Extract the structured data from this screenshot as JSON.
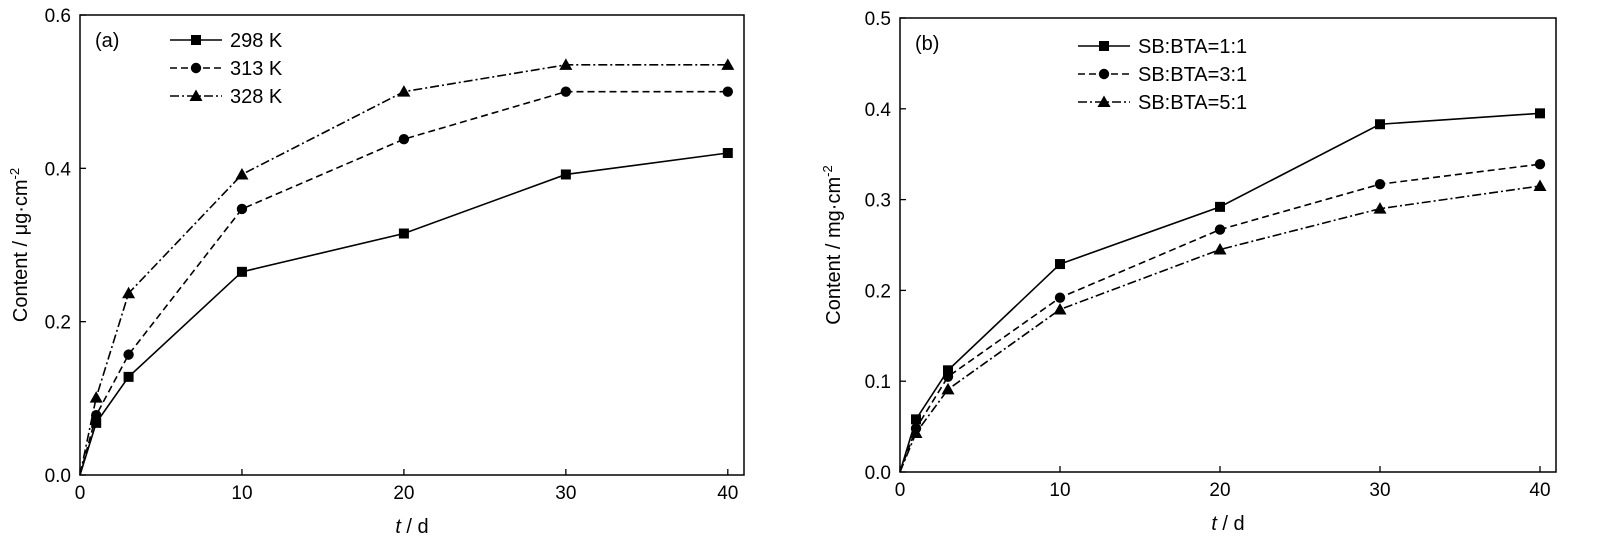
{
  "chart_data": [
    {
      "type": "line",
      "panel_label": "(a)",
      "xlabel_italic": "t",
      "xlabel_unit": " / d",
      "ylabel_text": "Content / μg·cm",
      "ylabel_sup": "-2",
      "xlim": [
        0,
        41
      ],
      "ylim": [
        0,
        0.6
      ],
      "xticks": [
        0,
        10,
        20,
        30,
        40
      ],
      "xtick_labels": [
        "0",
        "10",
        "20",
        "30",
        "40"
      ],
      "yticks": [
        0,
        0.2,
        0.4,
        0.6
      ],
      "ytick_labels": [
        "0.0",
        "0.2",
        "0.4",
        "0.6"
      ],
      "legend_position": "top-left",
      "grid": false,
      "x": [
        0,
        1,
        3,
        10,
        20,
        30,
        40
      ],
      "series": [
        {
          "name": "298 K",
          "marker": "square",
          "dash": "solid",
          "values": [
            0,
            0.068,
            0.128,
            0.265,
            0.315,
            0.392,
            0.42
          ]
        },
        {
          "name": "313 K",
          "marker": "circle",
          "dash": "dashed",
          "values": [
            0,
            0.078,
            0.157,
            0.347,
            0.438,
            0.5,
            0.5
          ]
        },
        {
          "name": "328 K",
          "marker": "triangle",
          "dash": "dashdot",
          "values": [
            0,
            0.101,
            0.237,
            0.392,
            0.5,
            0.535,
            0.535
          ]
        }
      ]
    },
    {
      "type": "line",
      "panel_label": "(b)",
      "xlabel_italic": "t",
      "xlabel_unit": " / d",
      "ylabel_text": "Content / mg·cm",
      "ylabel_sup": "-2",
      "xlim": [
        0,
        41
      ],
      "ylim": [
        0,
        0.5
      ],
      "xticks": [
        0,
        10,
        20,
        30,
        40
      ],
      "xtick_labels": [
        "0",
        "10",
        "20",
        "30",
        "40"
      ],
      "yticks": [
        0,
        0.1,
        0.2,
        0.3,
        0.4,
        0.5
      ],
      "ytick_labels": [
        "0.0",
        "0.1",
        "0.2",
        "0.3",
        "0.4",
        "0.5"
      ],
      "legend_position": "top-center",
      "grid": false,
      "x": [
        0,
        1,
        3,
        10,
        20,
        30,
        40
      ],
      "series": [
        {
          "name": "SB:BTA=1:1",
          "marker": "square",
          "dash": "solid",
          "values": [
            0,
            0.058,
            0.112,
            0.229,
            0.292,
            0.383,
            0.395
          ]
        },
        {
          "name": "SB:BTA=3:1",
          "marker": "circle",
          "dash": "dashed",
          "values": [
            0,
            0.048,
            0.105,
            0.192,
            0.267,
            0.317,
            0.339
          ]
        },
        {
          "name": "SB:BTA=5:1",
          "marker": "triangle",
          "dash": "dashdot",
          "values": [
            0,
            0.043,
            0.091,
            0.179,
            0.245,
            0.29,
            0.315
          ]
        }
      ]
    }
  ]
}
